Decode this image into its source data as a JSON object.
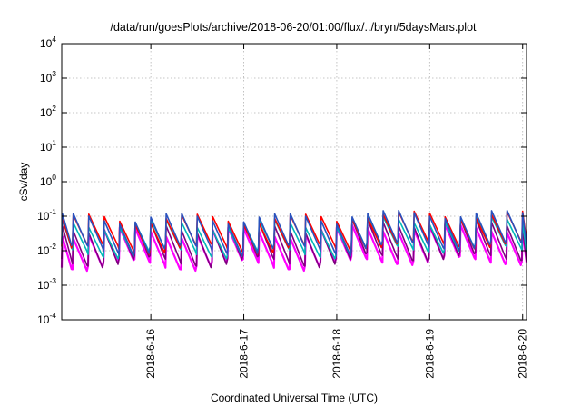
{
  "chart_data": {
    "type": "line",
    "title": "/data/run/goesPlots/archive/2018-06-20/01:00/flux/../bryn/5daysMars.plot",
    "xlabel": "Coordinated Universal Time (UTC)",
    "ylabel": "cSv/day",
    "yscale": "log",
    "ylim": [
      0.0001,
      10000
    ],
    "y_ticks": [
      {
        "base": "10",
        "exp": "-4",
        "value": 0.0001
      },
      {
        "base": "10",
        "exp": "-3",
        "value": 0.001
      },
      {
        "base": "10",
        "exp": "-2",
        "value": 0.01
      },
      {
        "base": "10",
        "exp": "-1",
        "value": 0.1
      },
      {
        "base": "10",
        "exp": "0",
        "value": 1
      },
      {
        "base": "10",
        "exp": "1",
        "value": 10
      },
      {
        "base": "10",
        "exp": "2",
        "value": 100
      },
      {
        "base": "10",
        "exp": "3",
        "value": 1000
      },
      {
        "base": "10",
        "exp": "4",
        "value": 10000
      }
    ],
    "xlim": [
      "2018-06-15T01:00",
      "2018-06-20T01:00"
    ],
    "x_ticks": [
      "2018-6-16",
      "2018-6-17",
      "2018-6-18",
      "2018-6-19",
      "2018-6-20"
    ],
    "grid": true,
    "cycle_hours": 4,
    "series": [
      {
        "color": "#ff0000",
        "peak": 0.085,
        "trough": 0.012
      },
      {
        "color": "#2a52be",
        "peak": 0.09,
        "trough": 0.011
      },
      {
        "color": "#00b8b8",
        "peak": 0.06,
        "trough": 0.009
      },
      {
        "color": "#800080",
        "peak": 0.05,
        "trough": 0.005
      },
      {
        "color": "#ff00ff",
        "peak": 0.035,
        "trough": 0.004
      }
    ]
  }
}
